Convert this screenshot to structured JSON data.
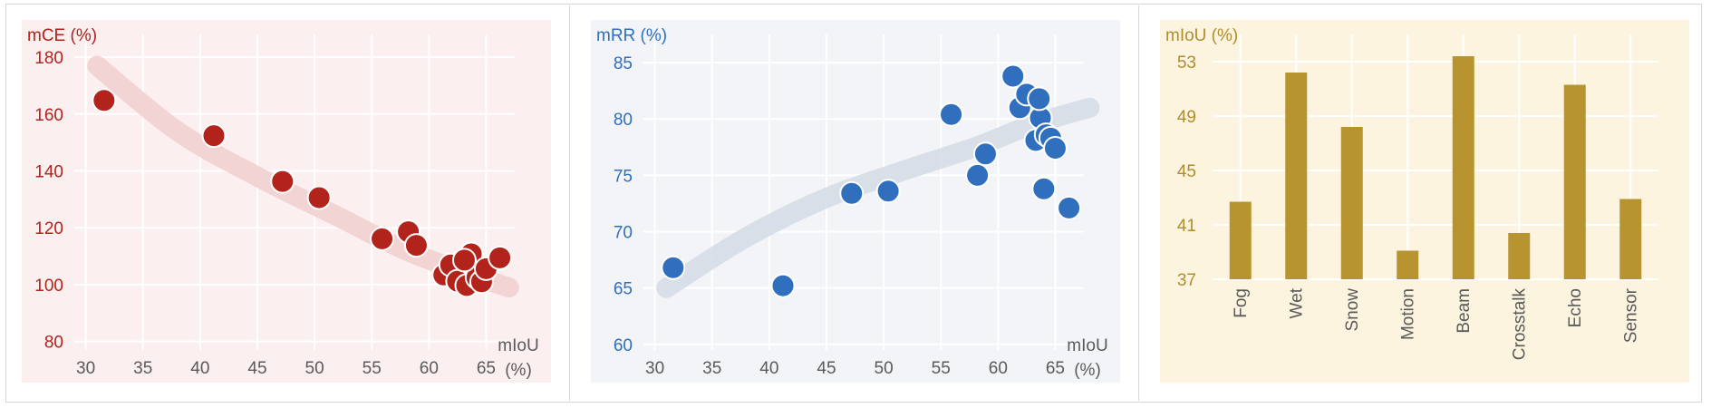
{
  "colors": {
    "red_bg": "#fcefef",
    "red": "#b1231b",
    "red_trend": "#f2d0d0",
    "blue_bg": "#f2f4f7",
    "blue": "#2f6fbd",
    "blue_trend": "#d6dde6",
    "yellow_bg": "#fcf4df",
    "gold": "#b79430",
    "gold_text": "#b08d2c",
    "axis_text": "#5a5a5a",
    "grid": "#ffffff"
  },
  "chart_data": [
    {
      "type": "scatter",
      "title": "mCE (%)",
      "xlabel": "mIoU (%)",
      "ylabel": "mCE (%)",
      "xlim": [
        29,
        67.5
      ],
      "ylim": [
        77,
        188
      ],
      "xticks": [
        30,
        35,
        40,
        45,
        50,
        55,
        60,
        65
      ],
      "yticks": [
        80,
        100,
        120,
        140,
        160,
        180
      ],
      "trend": [
        [
          31,
          177
        ],
        [
          38,
          154
        ],
        [
          45,
          138
        ],
        [
          52,
          124
        ],
        [
          58,
          112
        ],
        [
          64,
          103
        ],
        [
          67,
          99
        ]
      ],
      "points": [
        {
          "x": 31.6,
          "y": 164.8
        },
        {
          "x": 41.2,
          "y": 152.4
        },
        {
          "x": 47.2,
          "y": 136.3
        },
        {
          "x": 50.4,
          "y": 130.6
        },
        {
          "x": 55.9,
          "y": 116.1
        },
        {
          "x": 58.2,
          "y": 118.6
        },
        {
          "x": 58.9,
          "y": 113.8
        },
        {
          "x": 61.3,
          "y": 103.4
        },
        {
          "x": 61.9,
          "y": 106.9
        },
        {
          "x": 62.5,
          "y": 101.2
        },
        {
          "x": 63.3,
          "y": 99.7
        },
        {
          "x": 63.7,
          "y": 110.8
        },
        {
          "x": 64.2,
          "y": 102.5
        },
        {
          "x": 64.6,
          "y": 101.0
        },
        {
          "x": 65.0,
          "y": 105.6
        },
        {
          "x": 66.2,
          "y": 109.4
        },
        {
          "x": 63.1,
          "y": 108.6
        }
      ]
    },
    {
      "type": "scatter",
      "title": "mRR (%)",
      "xlabel": "mIoU (%)",
      "ylabel": "mRR (%)",
      "xlim": [
        29,
        67.5
      ],
      "ylim": [
        59.5,
        87.5
      ],
      "xticks": [
        30,
        35,
        40,
        45,
        50,
        55,
        60,
        65
      ],
      "yticks": [
        60,
        65,
        70,
        75,
        80,
        85
      ],
      "trend": [
        [
          31,
          65
        ],
        [
          38,
          69.5
        ],
        [
          45,
          73
        ],
        [
          52,
          75.5
        ],
        [
          58,
          77.5
        ],
        [
          63,
          79.5
        ],
        [
          68,
          81
        ]
      ],
      "points": [
        {
          "x": 31.6,
          "y": 66.8
        },
        {
          "x": 41.2,
          "y": 65.2
        },
        {
          "x": 47.2,
          "y": 73.4
        },
        {
          "x": 50.4,
          "y": 73.6
        },
        {
          "x": 55.9,
          "y": 80.4
        },
        {
          "x": 58.2,
          "y": 75.0
        },
        {
          "x": 58.9,
          "y": 76.9
        },
        {
          "x": 61.3,
          "y": 83.8
        },
        {
          "x": 61.9,
          "y": 81.0
        },
        {
          "x": 62.5,
          "y": 82.2
        },
        {
          "x": 63.3,
          "y": 78.1
        },
        {
          "x": 63.7,
          "y": 80.1
        },
        {
          "x": 64.2,
          "y": 78.6
        },
        {
          "x": 64.6,
          "y": 78.3
        },
        {
          "x": 65.0,
          "y": 77.4
        },
        {
          "x": 64.0,
          "y": 73.8
        },
        {
          "x": 66.2,
          "y": 72.1
        },
        {
          "x": 63.6,
          "y": 81.8
        }
      ]
    },
    {
      "type": "bar",
      "title": "mIoU (%)",
      "categories": [
        "Fog",
        "Wet",
        "Snow",
        "Motion",
        "Beam",
        "Crosstalk",
        "Echo",
        "Sensor"
      ],
      "values": [
        42.7,
        52.2,
        48.2,
        39.1,
        53.4,
        40.4,
        51.3,
        42.9
      ],
      "ylim": [
        37,
        55
      ],
      "yticks": [
        37,
        41,
        45,
        49,
        53
      ]
    }
  ]
}
